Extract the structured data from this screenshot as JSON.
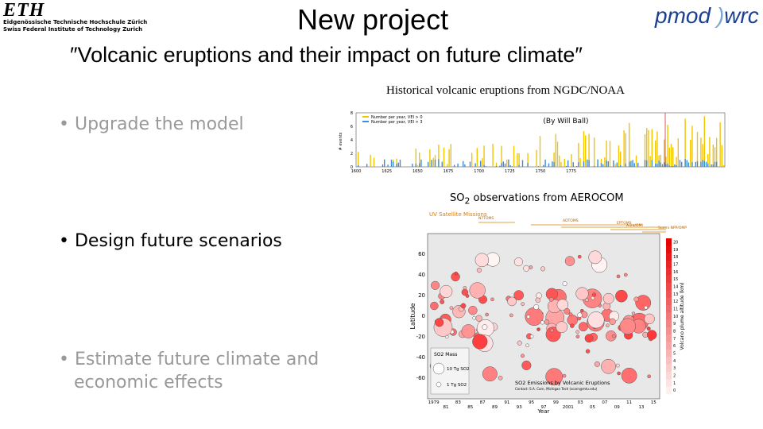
{
  "header": {
    "title": "New project",
    "logo_left": {
      "mark": "ETH",
      "line1": "Eidgenössische Technische Hochschule Zürich",
      "line2": "Swiss Federal Institute of Technology Zurich"
    },
    "logo_right": {
      "part1": "pmod",
      "part2": "wrc"
    }
  },
  "subtitle": "″Volcanic eruptions and their impact on future climate″",
  "bullets": [
    "Upgrade the model",
    "Design future scenarios",
    "Estimate future climate and economic effects"
  ],
  "figure1": {
    "caption": "Historical volcanic eruptions from NGDC/NOAA",
    "credit": "(By Will Ball)",
    "legend": [
      "Number per year, VEI > 0",
      "Number per year, VEI > 3"
    ],
    "y_label": "# events",
    "yticks": [
      0,
      2,
      4,
      6,
      8
    ],
    "xticks": [
      1600,
      1625,
      1650,
      1675,
      1700,
      1725,
      1750,
      1775
    ]
  },
  "figure2": {
    "caption": {
      "pre": "SO",
      "sub": "2",
      "post": " observations from AEROCOM"
    },
    "missions_title": "UV Satellite Missions",
    "missions": [
      "N7TOMS",
      "ADTOMS",
      "EPTOMS",
      "Aura/OMI",
      "Suomi NPP/OMPS"
    ],
    "y_label": "Latitude",
    "yticks": [
      60,
      40,
      20,
      0,
      -20,
      -40,
      -60
    ],
    "x_label": "Year",
    "xticks": [
      "1979",
      "81",
      "83",
      "85",
      "87",
      "89",
      "91",
      "93",
      "95",
      "97",
      "99",
      "2001",
      "03",
      "05",
      "07",
      "09",
      "11",
      "13",
      "15"
    ],
    "mass_title": "SO2 Mass",
    "mass_legend": [
      "10 Tg SO2",
      "1 Tg SO2"
    ],
    "plot_title": "SO2 Emissions by Volcanic Eruptions",
    "plot_credit": "Contact: S.A. Carn, Michigan Tech (scarn@mtu.edu)",
    "colorbar_label": "Volcano plume altitude (km)",
    "colorbar_ticks": [
      20,
      19,
      18,
      17,
      16,
      15,
      14,
      13,
      12,
      11,
      10,
      9,
      8,
      7,
      6,
      5,
      4,
      3,
      2,
      1,
      0
    ]
  }
}
